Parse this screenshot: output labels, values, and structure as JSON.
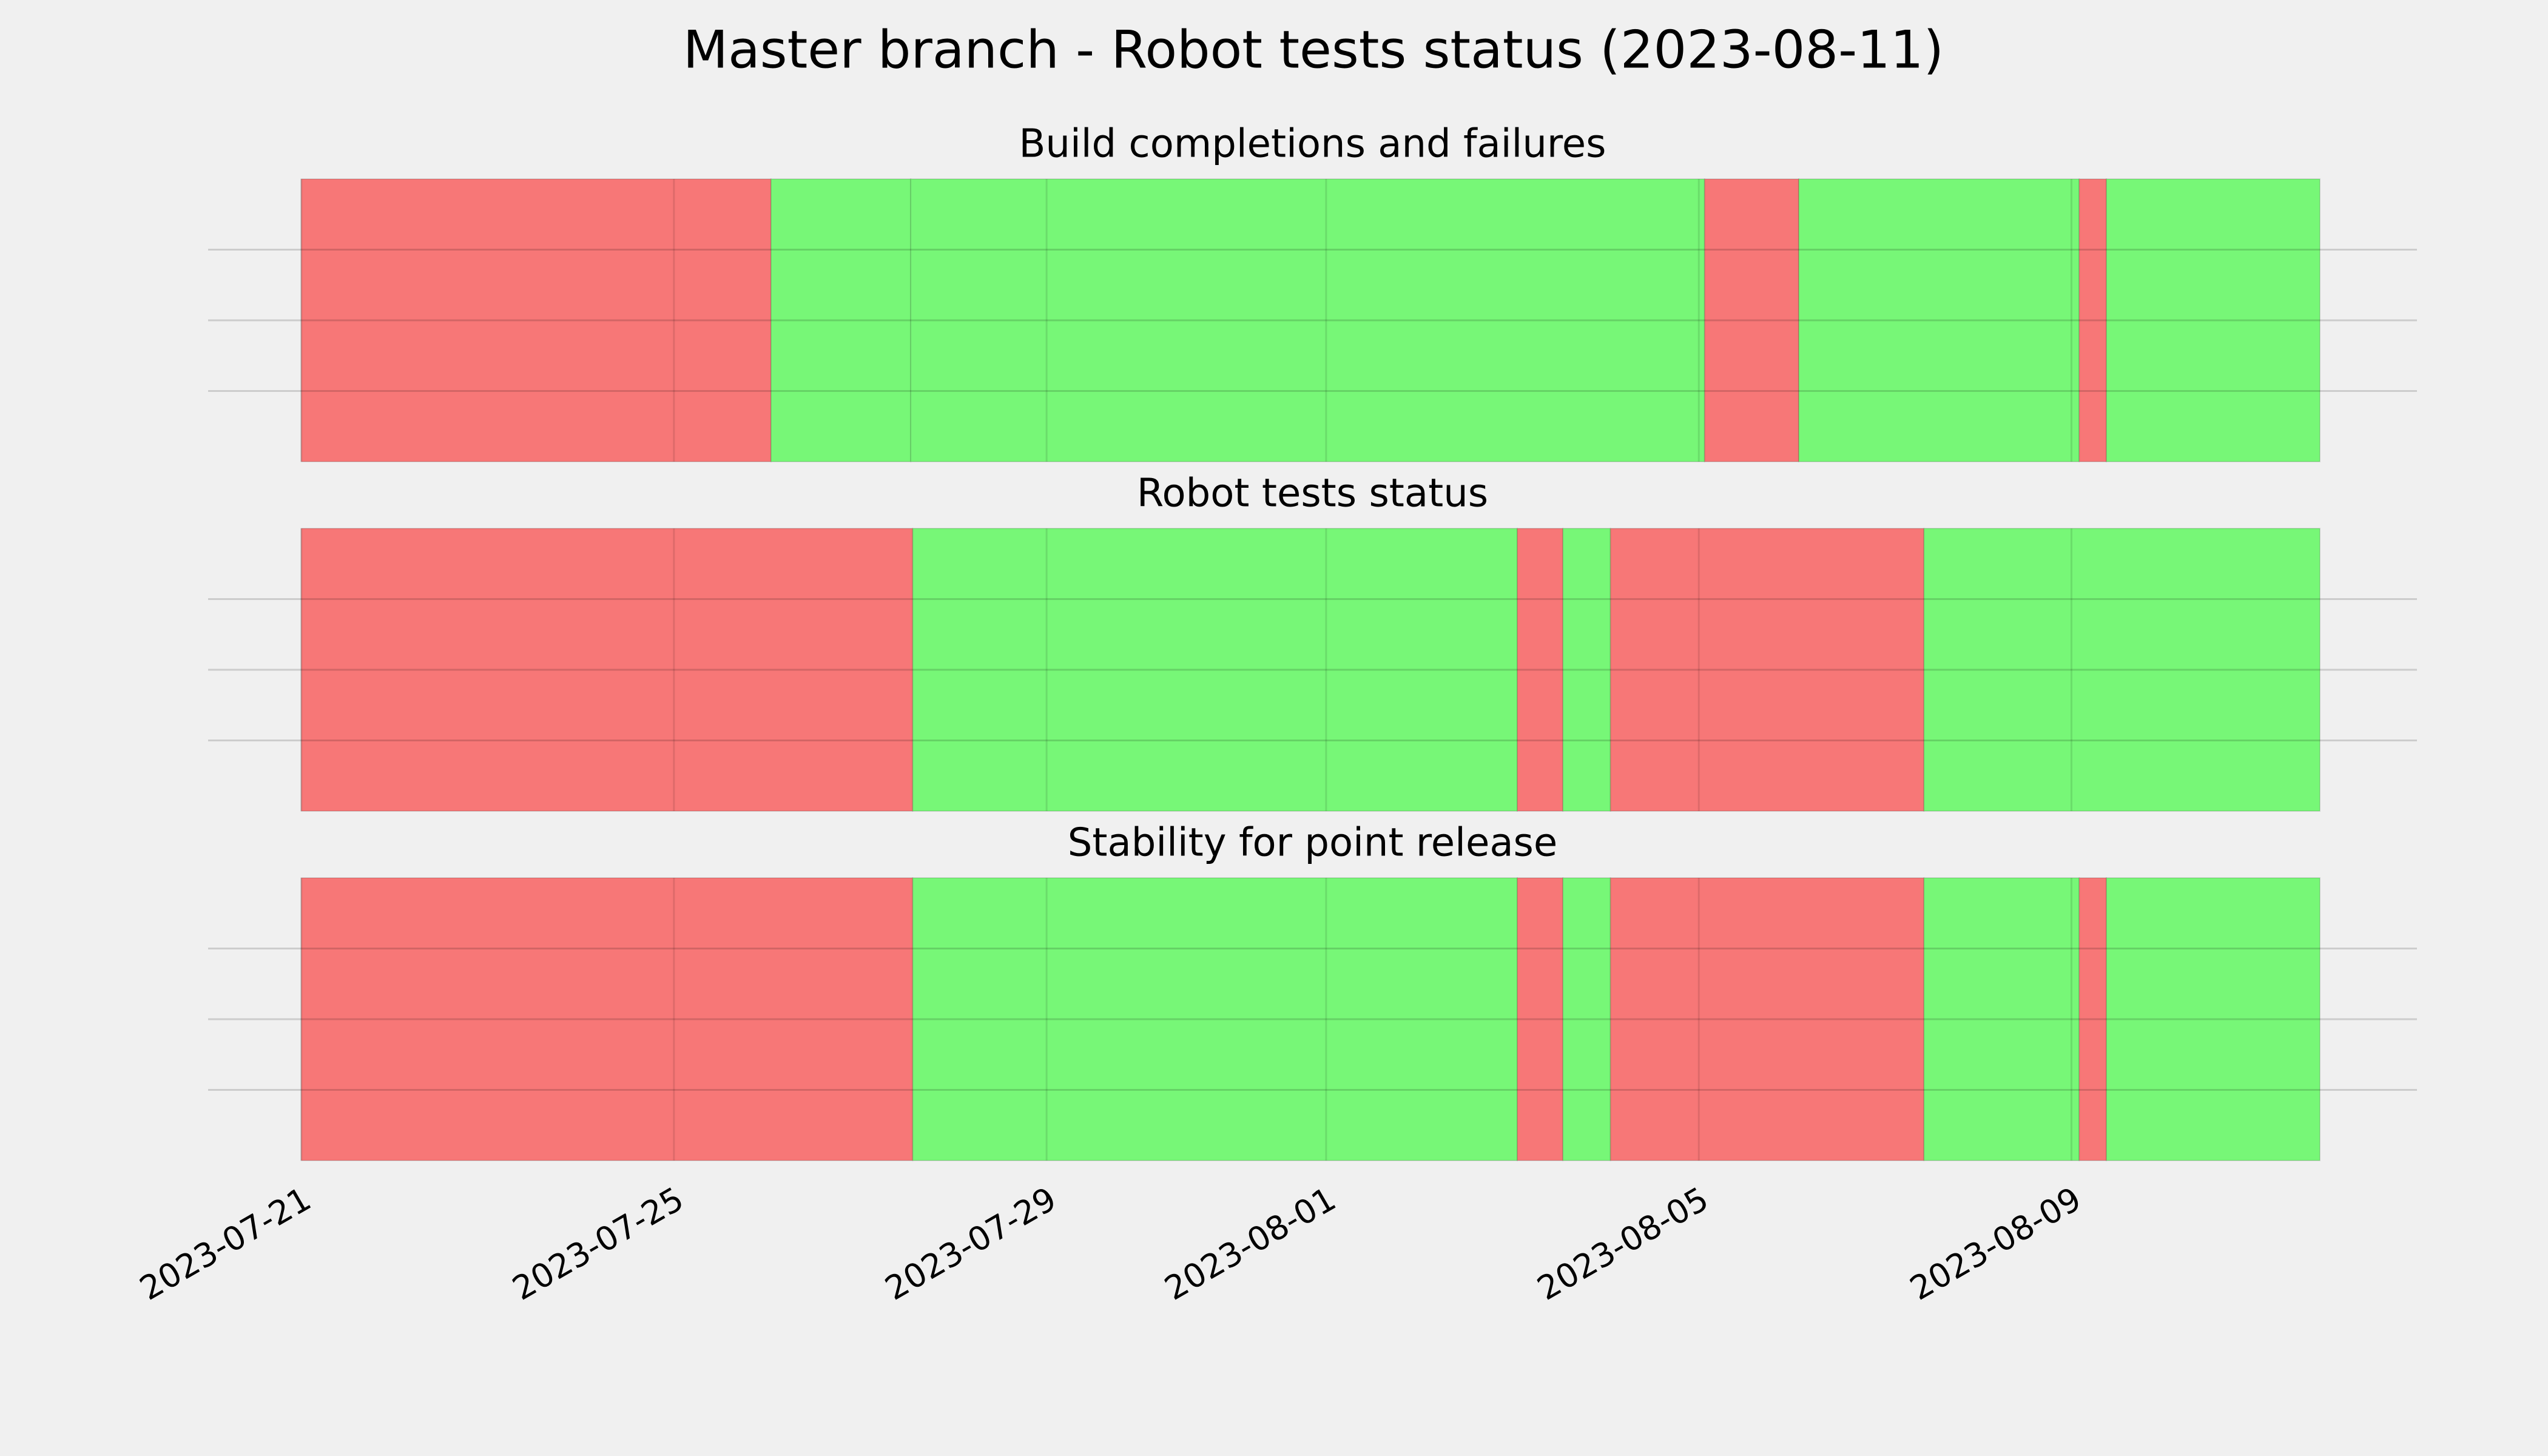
{
  "title": "Master branch - Robot tests status (2023-08-11)",
  "chart_data": [
    {
      "type": "timeline",
      "title": "Build completions and failures",
      "xlim": [
        "2023-07-20T00:00",
        "2023-08-12T17:00"
      ],
      "xticks": [
        "2023-07-21",
        "2023-07-25",
        "2023-07-29",
        "2023-08-01",
        "2023-08-05",
        "2023-08-09"
      ],
      "ylim": [
        0,
        1
      ],
      "yticks": [
        0.25,
        0.5,
        0.75
      ],
      "grid": true,
      "segments": [
        {
          "start": "2023-07-21T00:00",
          "end": "2023-07-26T01:00",
          "color": "#f77777"
        },
        {
          "start": "2023-07-26T01:00",
          "end": "2023-07-27T13:00",
          "color": "#77f777"
        },
        {
          "start": "2023-07-27T13:00",
          "end": "2023-08-05T01:30",
          "color": "#77f777"
        },
        {
          "start": "2023-08-05T01:30",
          "end": "2023-08-06T01:45",
          "color": "#f77777"
        },
        {
          "start": "2023-08-06T01:45",
          "end": "2023-08-09T02:00",
          "color": "#77f777"
        },
        {
          "start": "2023-08-09T02:00",
          "end": "2023-08-09T09:00",
          "color": "#f77777"
        },
        {
          "start": "2023-08-09T09:00",
          "end": "2023-08-11T16:00",
          "color": "#77f777"
        }
      ]
    },
    {
      "type": "timeline",
      "title": "Robot tests status",
      "xlim": [
        "2023-07-20T00:00",
        "2023-08-12T17:00"
      ],
      "xticks": [
        "2023-07-21",
        "2023-07-25",
        "2023-07-29",
        "2023-08-01",
        "2023-08-05",
        "2023-08-09"
      ],
      "ylim": [
        0,
        1
      ],
      "yticks": [
        0.25,
        0.5,
        0.75
      ],
      "grid": true,
      "segments": [
        {
          "start": "2023-07-21T00:00",
          "end": "2023-07-27T13:30",
          "color": "#f77777"
        },
        {
          "start": "2023-07-27T13:30",
          "end": "2023-08-03T01:15",
          "color": "#77f777"
        },
        {
          "start": "2023-08-03T01:15",
          "end": "2023-08-03T13:00",
          "color": "#f77777"
        },
        {
          "start": "2023-08-03T13:00",
          "end": "2023-08-04T01:15",
          "color": "#77f777"
        },
        {
          "start": "2023-08-04T01:15",
          "end": "2023-08-07T10:00",
          "color": "#f77777"
        },
        {
          "start": "2023-08-07T10:00",
          "end": "2023-08-11T16:00",
          "color": "#77f777"
        }
      ]
    },
    {
      "type": "timeline",
      "title": "Stability for point release",
      "xlim": [
        "2023-07-20T00:00",
        "2023-08-12T17:00"
      ],
      "xticks": [
        "2023-07-21",
        "2023-07-25",
        "2023-07-29",
        "2023-08-01",
        "2023-08-05",
        "2023-08-09"
      ],
      "ylim": [
        0,
        1
      ],
      "yticks": [
        0.25,
        0.5,
        0.75
      ],
      "grid": true,
      "segments": [
        {
          "start": "2023-07-21T00:00",
          "end": "2023-07-27T13:30",
          "color": "#f77777"
        },
        {
          "start": "2023-07-27T13:30",
          "end": "2023-08-03T01:15",
          "color": "#77f777"
        },
        {
          "start": "2023-08-03T01:15",
          "end": "2023-08-03T13:00",
          "color": "#f77777"
        },
        {
          "start": "2023-08-03T13:00",
          "end": "2023-08-04T01:15",
          "color": "#77f777"
        },
        {
          "start": "2023-08-04T01:15",
          "end": "2023-08-07T10:00",
          "color": "#f77777"
        },
        {
          "start": "2023-08-07T10:00",
          "end": "2023-08-09T02:00",
          "color": "#77f777"
        },
        {
          "start": "2023-08-09T02:00",
          "end": "2023-08-09T09:00",
          "color": "#f77777"
        },
        {
          "start": "2023-08-09T09:00",
          "end": "2023-08-11T16:00",
          "color": "#77f777"
        }
      ]
    }
  ]
}
